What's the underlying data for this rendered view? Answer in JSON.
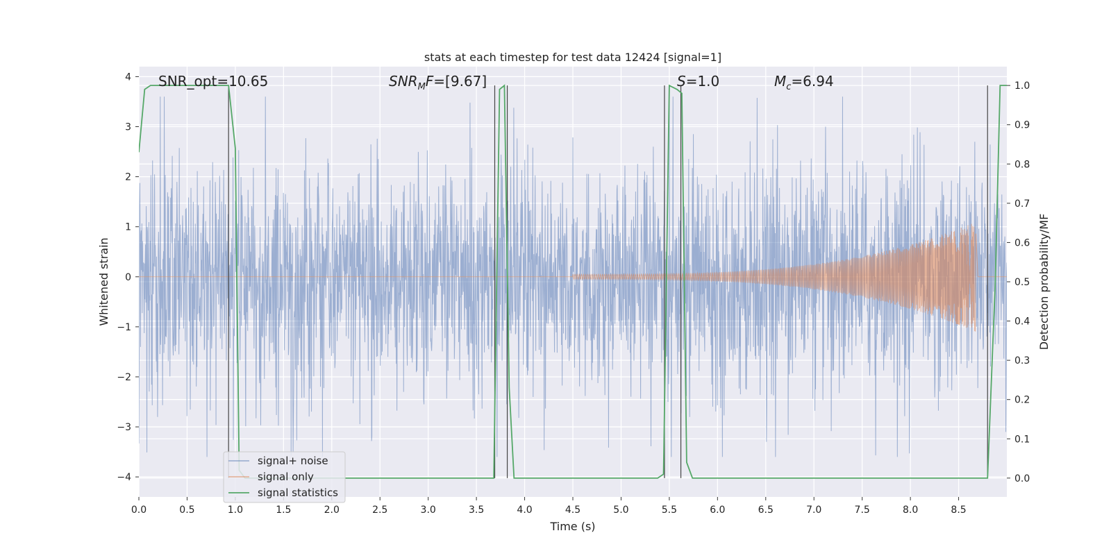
{
  "chart_data": {
    "type": "line",
    "title": "stats at each timestep for test data 12424 [signal=1]",
    "xlabel": "Time (s)",
    "ylabel": "Whitened strain",
    "ylabel_right": "Detection probability/MF",
    "xlim": [
      0.0,
      9.0
    ],
    "ylim": [
      -4.4,
      4.2
    ],
    "ylim_right": [
      -0.048,
      1.048
    ],
    "xticks": [
      0.0,
      0.5,
      1.0,
      1.5,
      2.0,
      2.5,
      3.0,
      3.5,
      4.0,
      4.5,
      5.0,
      5.5,
      6.0,
      6.5,
      7.0,
      7.5,
      8.0,
      8.5
    ],
    "xtick_labels": [
      "0.0",
      "0.5",
      "1.0",
      "1.5",
      "2.0",
      "2.5",
      "3.0",
      "3.5",
      "4.0",
      "4.5",
      "5.0",
      "5.5",
      "6.0",
      "6.5",
      "7.0",
      "7.5",
      "8.0",
      "8.5"
    ],
    "yticks": [
      -4,
      -3,
      -2,
      -1,
      0,
      1,
      2,
      3,
      4
    ],
    "ytick_labels": [
      "−4",
      "−3",
      "−2",
      "−1",
      "0",
      "1",
      "2",
      "3",
      "4"
    ],
    "yticks_right": [
      0.0,
      0.1,
      0.2,
      0.3,
      0.4,
      0.5,
      0.6,
      0.7,
      0.8,
      0.9,
      1.0
    ],
    "ytick_labels_right": [
      "0.0",
      "0.1",
      "0.2",
      "0.3",
      "0.4",
      "0.5",
      "0.6",
      "0.7",
      "0.8",
      "0.9",
      "1.0"
    ],
    "grid": true,
    "legend_position": "lower-left",
    "annotations": [
      {
        "text": "SNR_opt=10.65"
      },
      {
        "text": "SNR_MF=[9.67]",
        "math": "snr_mf"
      },
      {
        "text": "S=1.0",
        "math": "s"
      },
      {
        "text": "M_c=6.94",
        "math": "mc"
      }
    ],
    "series": [
      {
        "name": "signal+ noise",
        "color": "#4c72b0",
        "axis": "left",
        "kind": "noise",
        "x_range": [
          0.0,
          9.0
        ],
        "amplitude_approx": [
          -3.6,
          3.6
        ]
      },
      {
        "name": "signal only",
        "color": "#dd8452",
        "axis": "left",
        "kind": "chirp",
        "start": 4.5,
        "merger": 8.68,
        "amplitude_at_start": 0.05,
        "amplitude_at_merger": 1.1
      },
      {
        "name": "signal statistics",
        "color": "#55a868",
        "axis": "right",
        "x": [
          0.0,
          0.06,
          0.12,
          0.2,
          0.5,
          0.8,
          0.93,
          1.0,
          1.04,
          1.1,
          1.2,
          3.0,
          3.68,
          3.74,
          3.79,
          3.84,
          3.89,
          3.95,
          5.0,
          5.38,
          5.44,
          5.5,
          5.58,
          5.63,
          5.68,
          5.74,
          7.3,
          8.5,
          8.8,
          8.88,
          8.93,
          9.0
        ],
        "y": [
          0.83,
          0.99,
          1.0,
          1.0,
          1.0,
          1.0,
          1.0,
          0.84,
          0.02,
          0.0,
          0.0,
          0.0,
          0.0,
          0.99,
          1.0,
          0.23,
          0.0,
          0.0,
          0.0,
          0.0,
          0.01,
          1.0,
          0.99,
          0.98,
          0.04,
          0.0,
          0.0,
          0.0,
          0.0,
          0.5,
          1.0,
          1.0
        ]
      }
    ],
    "vlines": [
      {
        "x": 0.93,
        "color": "#444444"
      },
      {
        "x": 3.69,
        "color": "#444444"
      },
      {
        "x": 3.82,
        "color": "#444444"
      },
      {
        "x": 5.45,
        "color": "#444444"
      },
      {
        "x": 5.62,
        "color": "#444444"
      },
      {
        "x": 8.8,
        "color": "#444444"
      }
    ]
  }
}
